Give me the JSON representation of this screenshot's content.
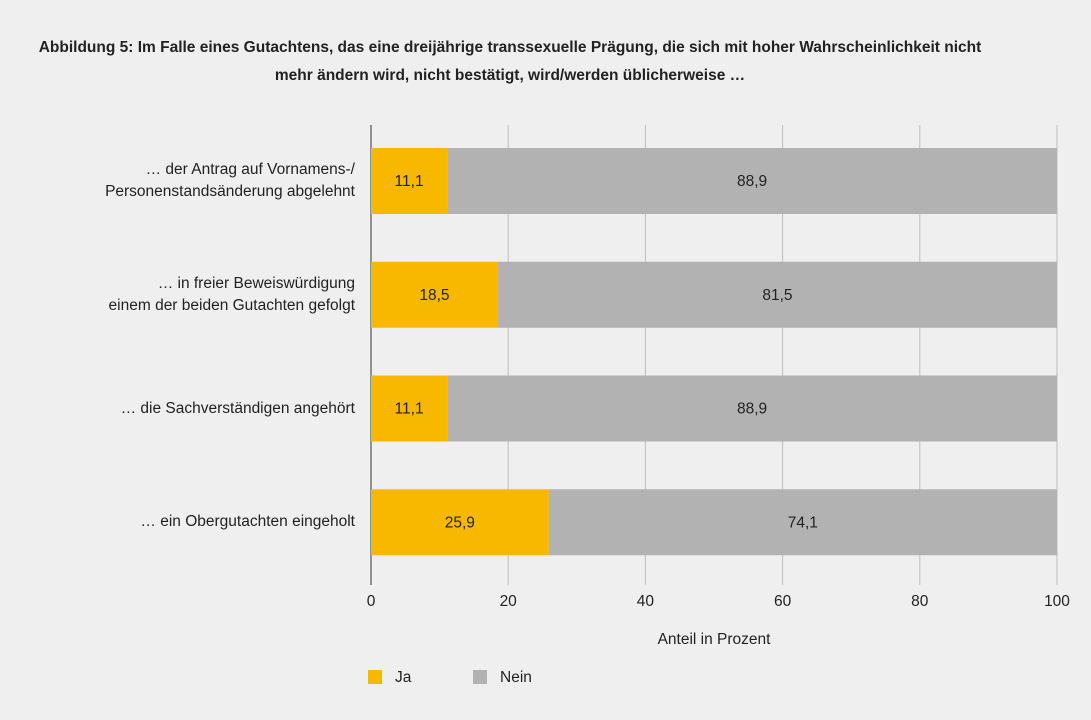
{
  "chart_data": {
    "type": "stacked_barh",
    "title": "Abbildung 5: Im Falle eines Gutachtens, das eine dreijährige transsexuelle Prägung, die sich mit hoher Wahrscheinlichkeit nicht mehr ändern wird, nicht bestätigt, wird/werden üblicherweise …",
    "categories": [
      "… der Antrag auf Vornamens-/\nPersonenstandsänderung abgelehnt",
      "… in freier Beweiswürdigung\neinem der beiden Gutachten gefolgt",
      "… die Sachverständigen angehört",
      "… ein Obergutachten eingeholt"
    ],
    "series": [
      {
        "name": "Ja",
        "color": "#f8b800",
        "values": [
          11.1,
          18.5,
          11.1,
          25.9
        ],
        "value_labels": [
          "11,1",
          "18,5",
          "11,1",
          "25,9"
        ]
      },
      {
        "name": "Nein",
        "color": "#b2b2b2",
        "values": [
          88.9,
          81.5,
          88.9,
          74.1
        ],
        "value_labels": [
          "88,9",
          "81,5",
          "88,9",
          "74,1"
        ]
      }
    ],
    "xlabel": "Anteil in Prozent",
    "xlim": [
      0,
      100
    ],
    "xticks": [
      0,
      20,
      40,
      60,
      80,
      100
    ],
    "grid": true,
    "legend": "bottom-left"
  }
}
